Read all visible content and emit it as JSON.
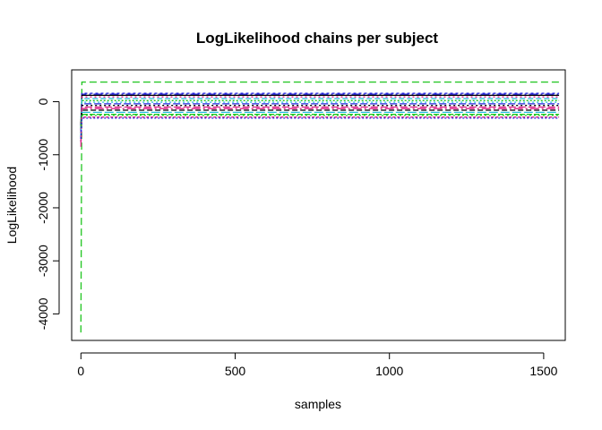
{
  "chart_data": {
    "type": "line",
    "title": "LogLikelihood chains per subject",
    "xlabel": "samples",
    "ylabel": "LogLikelihood",
    "xlim": [
      -30,
      1570
    ],
    "ylim": [
      -4500,
      600
    ],
    "x_ticks": [
      0,
      500,
      1000,
      1500
    ],
    "x_tick_labels": [
      "0",
      "500",
      "1000",
      "1500"
    ],
    "y_ticks": [
      -4000,
      -3000,
      -2000,
      -1000,
      0
    ],
    "y_tick_labels": [
      "-4000",
      "-3000",
      "-2000",
      "-1000",
      "0"
    ],
    "n_samples": 1550,
    "grid": false,
    "legend": "none",
    "series": [
      {
        "color": "#1FC51F",
        "dash": "8,4",
        "start": -4350,
        "plateau": 370
      },
      {
        "color": "#2222DD",
        "dash": "3,3",
        "start": -700,
        "plateau": 160
      },
      {
        "color": "#2222DD",
        "dash": "10,3,2,3",
        "start": -550,
        "plateau": 140
      },
      {
        "color": "#000000",
        "dash": "",
        "start": -420,
        "plateau": 120
      },
      {
        "color": "#DD2288",
        "dash": "2,3",
        "start": -600,
        "plateau": 90
      },
      {
        "color": "#22BBDD",
        "dash": "6,3",
        "start": -500,
        "plateau": 60
      },
      {
        "color": "#1FC51F",
        "dash": "2,2",
        "start": -650,
        "plateau": 20
      },
      {
        "color": "#22BBDD",
        "dash": "2,3",
        "start": -300,
        "plateau": -10
      },
      {
        "color": "#2222DD",
        "dash": "8,3",
        "start": -550,
        "plateau": -40
      },
      {
        "color": "#000000",
        "dash": "2,3",
        "start": -750,
        "plateau": -70
      },
      {
        "color": "#DD2288",
        "dash": "8,3",
        "start": -600,
        "plateau": -100
      },
      {
        "color": "#DD2288",
        "dash": "10,3,2,3",
        "start": -800,
        "plateau": -130
      },
      {
        "color": "#000000",
        "dash": "6,3",
        "start": -450,
        "plateau": -160
      },
      {
        "color": "#22BBDD",
        "dash": "10,3",
        "start": -650,
        "plateau": -200
      },
      {
        "color": "#1FC51F",
        "dash": "6,2",
        "start": -500,
        "plateau": -240
      },
      {
        "color": "#1FC51F",
        "dash": "2,3",
        "start": -350,
        "plateau": -260
      },
      {
        "color": "#DD2288",
        "dash": "3,2",
        "start": -850,
        "plateau": -290
      },
      {
        "color": "#2222DD",
        "dash": "2,2",
        "start": -700,
        "plateau": -310
      }
    ]
  }
}
